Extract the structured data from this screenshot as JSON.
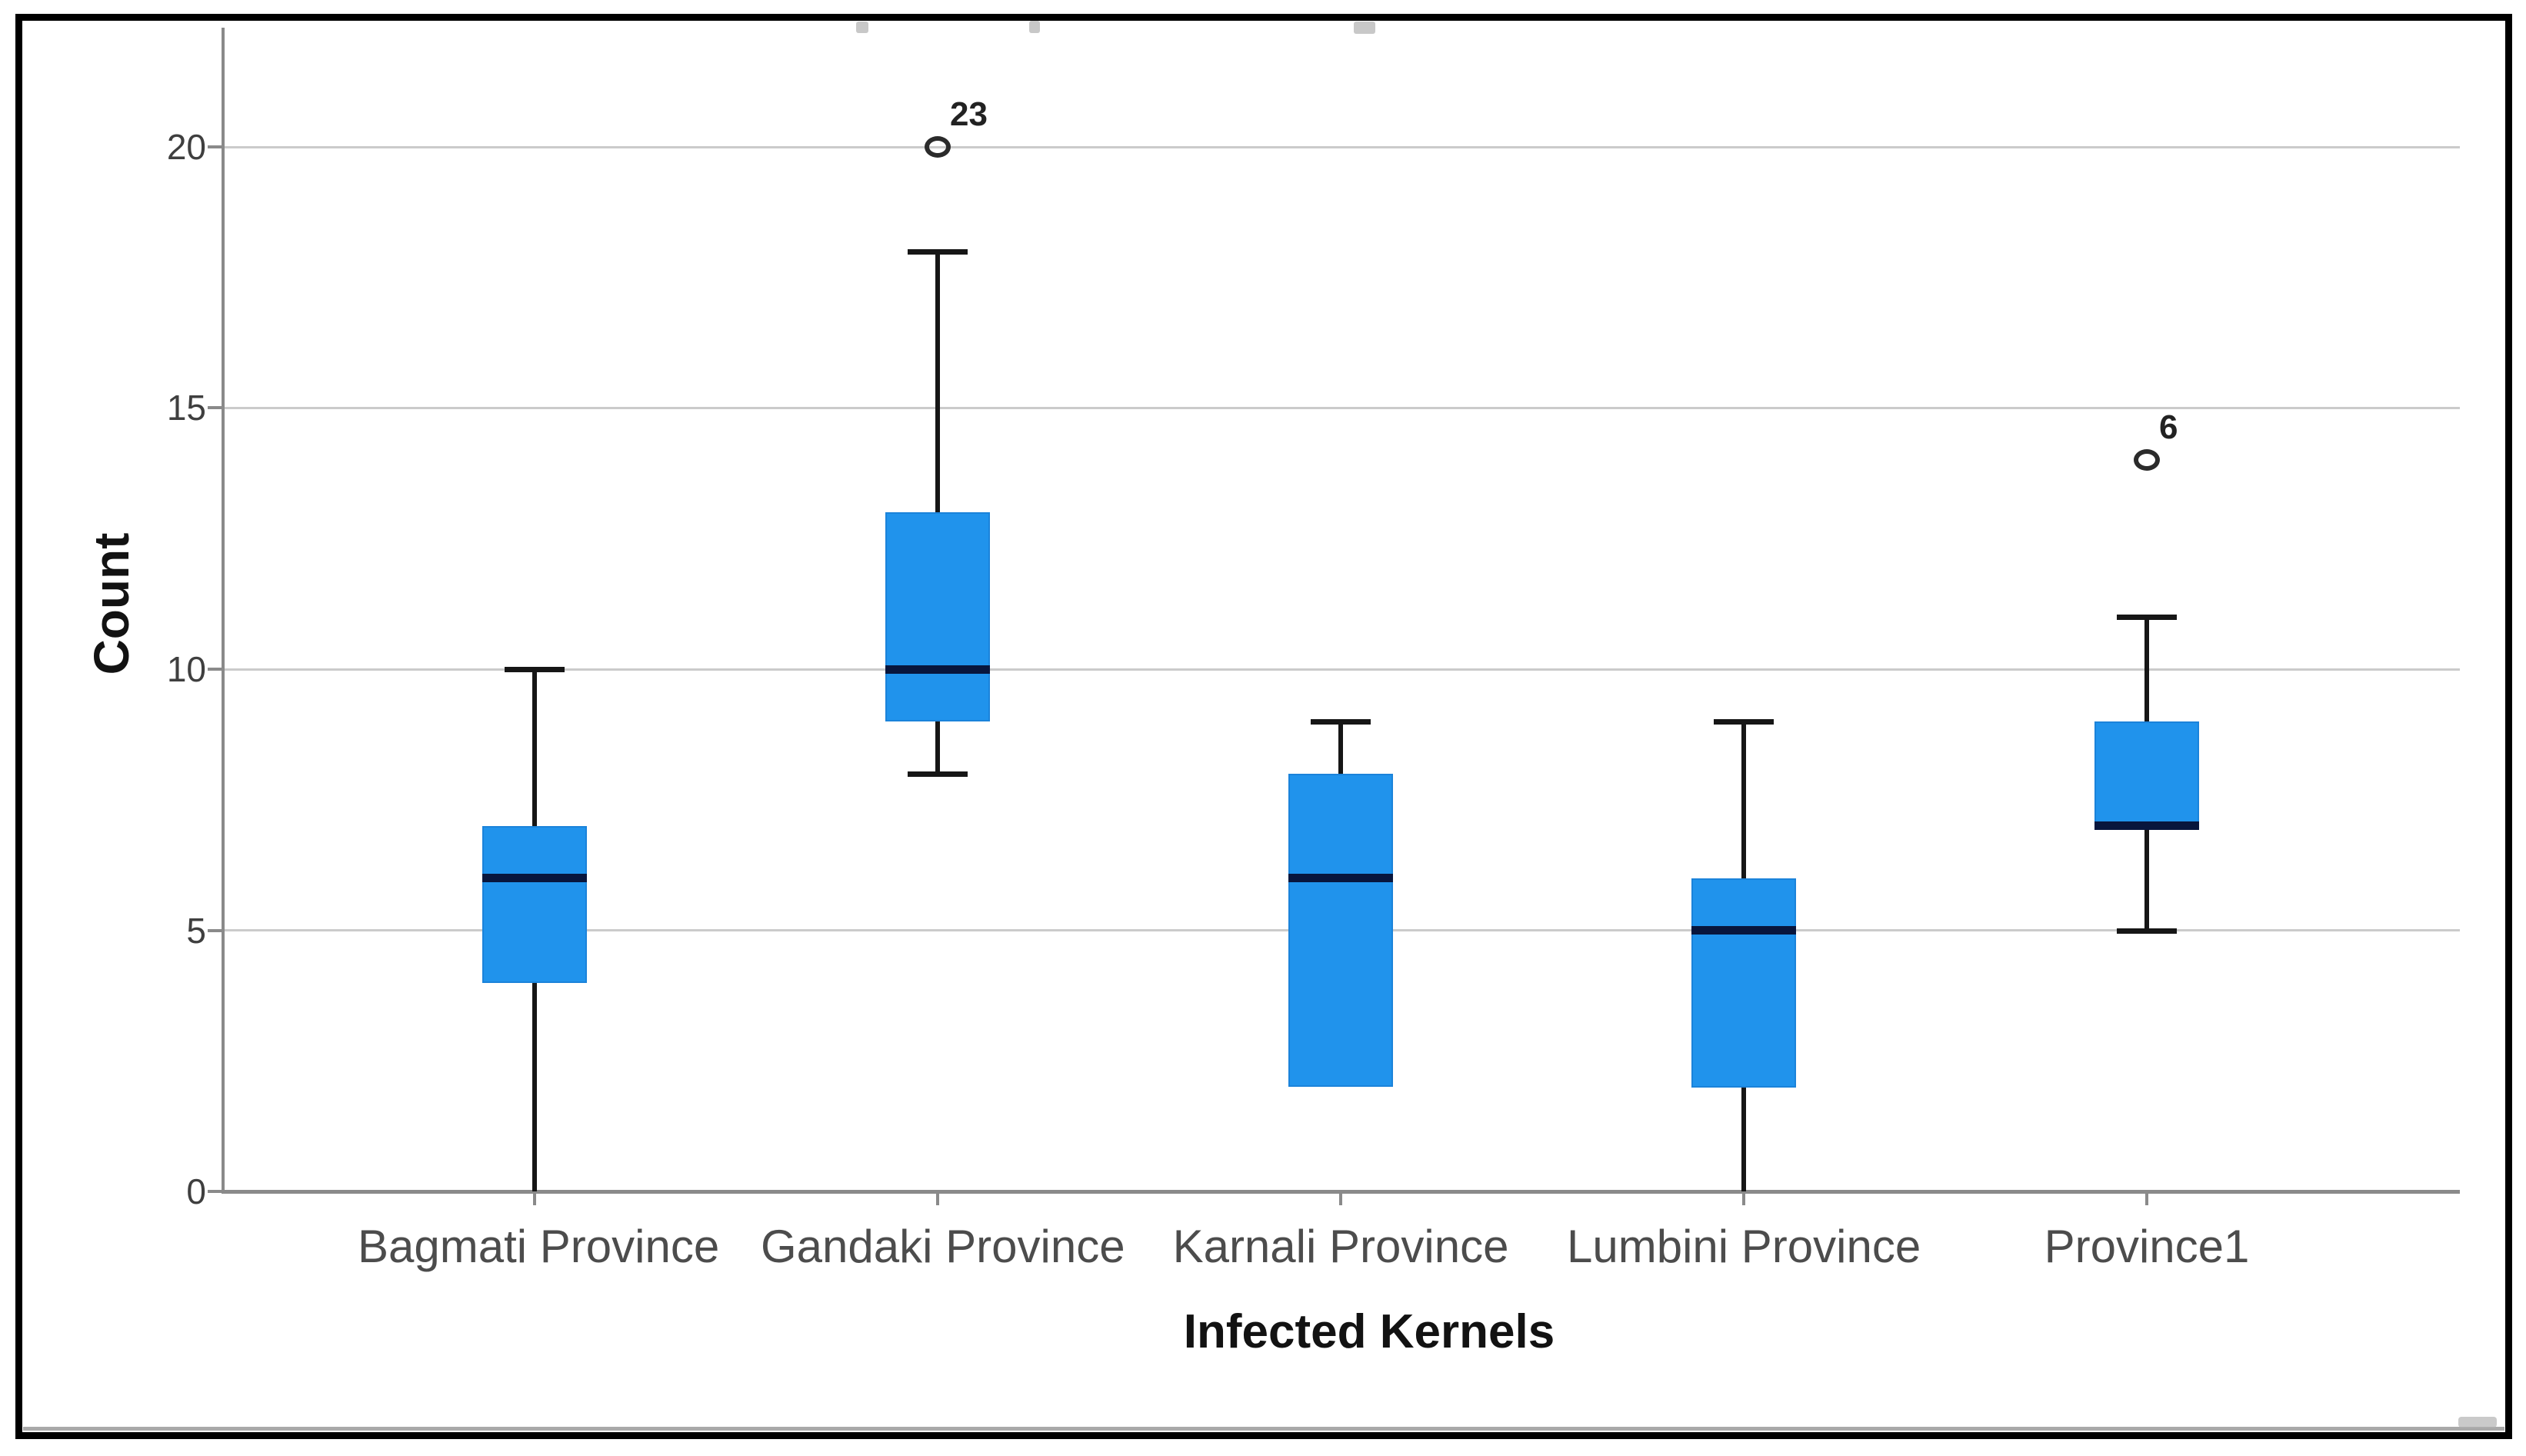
{
  "chart_data": {
    "type": "boxplot",
    "title": "",
    "xlabel": "Infected Kernels",
    "ylabel": "Count",
    "ylim": [
      0,
      22
    ],
    "yticks": [
      0,
      5,
      10,
      15,
      20
    ],
    "grid": "horizontal gridlines at y ticks, light gray",
    "legend": "none",
    "categories": [
      "Bagmati Province",
      "Gandaki Province",
      "Karnali Province",
      "Lumbini Province",
      "Province1"
    ],
    "boxes": [
      {
        "category": "Bagmati Province",
        "whisker_low": 0,
        "q1": 4,
        "median": 6,
        "q3": 7,
        "whisker_high": 10,
        "lower_cap": false,
        "upper_cap": true,
        "outliers": []
      },
      {
        "category": "Gandaki Province",
        "whisker_low": 8,
        "q1": 9,
        "median": 10,
        "q3": 13,
        "whisker_high": 18,
        "lower_cap": true,
        "upper_cap": true,
        "outliers": [
          {
            "value": 20,
            "label": "23"
          }
        ]
      },
      {
        "category": "Karnali Province",
        "whisker_low": 2,
        "q1": 2,
        "median": 6,
        "q3": 8,
        "whisker_high": 9,
        "lower_cap": false,
        "upper_cap": true,
        "outliers": []
      },
      {
        "category": "Lumbini Province",
        "whisker_low": 0,
        "q1": 2,
        "median": 5,
        "q3": 6,
        "whisker_high": 9,
        "lower_cap": false,
        "upper_cap": true,
        "outliers": []
      },
      {
        "category": "Province1",
        "whisker_low": 5,
        "q1": 7,
        "median": 7,
        "q3": 9,
        "whisker_high": 11,
        "lower_cap": true,
        "upper_cap": true,
        "outliers": [
          {
            "value": 14,
            "label": "6"
          }
        ]
      }
    ],
    "colors": {
      "box_fill": "#2093ec",
      "box_edge": "#1b83da",
      "median": "#08163d",
      "whisker": "#161616",
      "gridline": "#cbcbcb",
      "axis": "#8a8a8a",
      "tick_label": "#3f3f3f",
      "category_label": "#4c4c4c",
      "axis_title": "#121212",
      "outlier_stroke": "#2b2b2b",
      "frame_border": "#000000"
    }
  }
}
